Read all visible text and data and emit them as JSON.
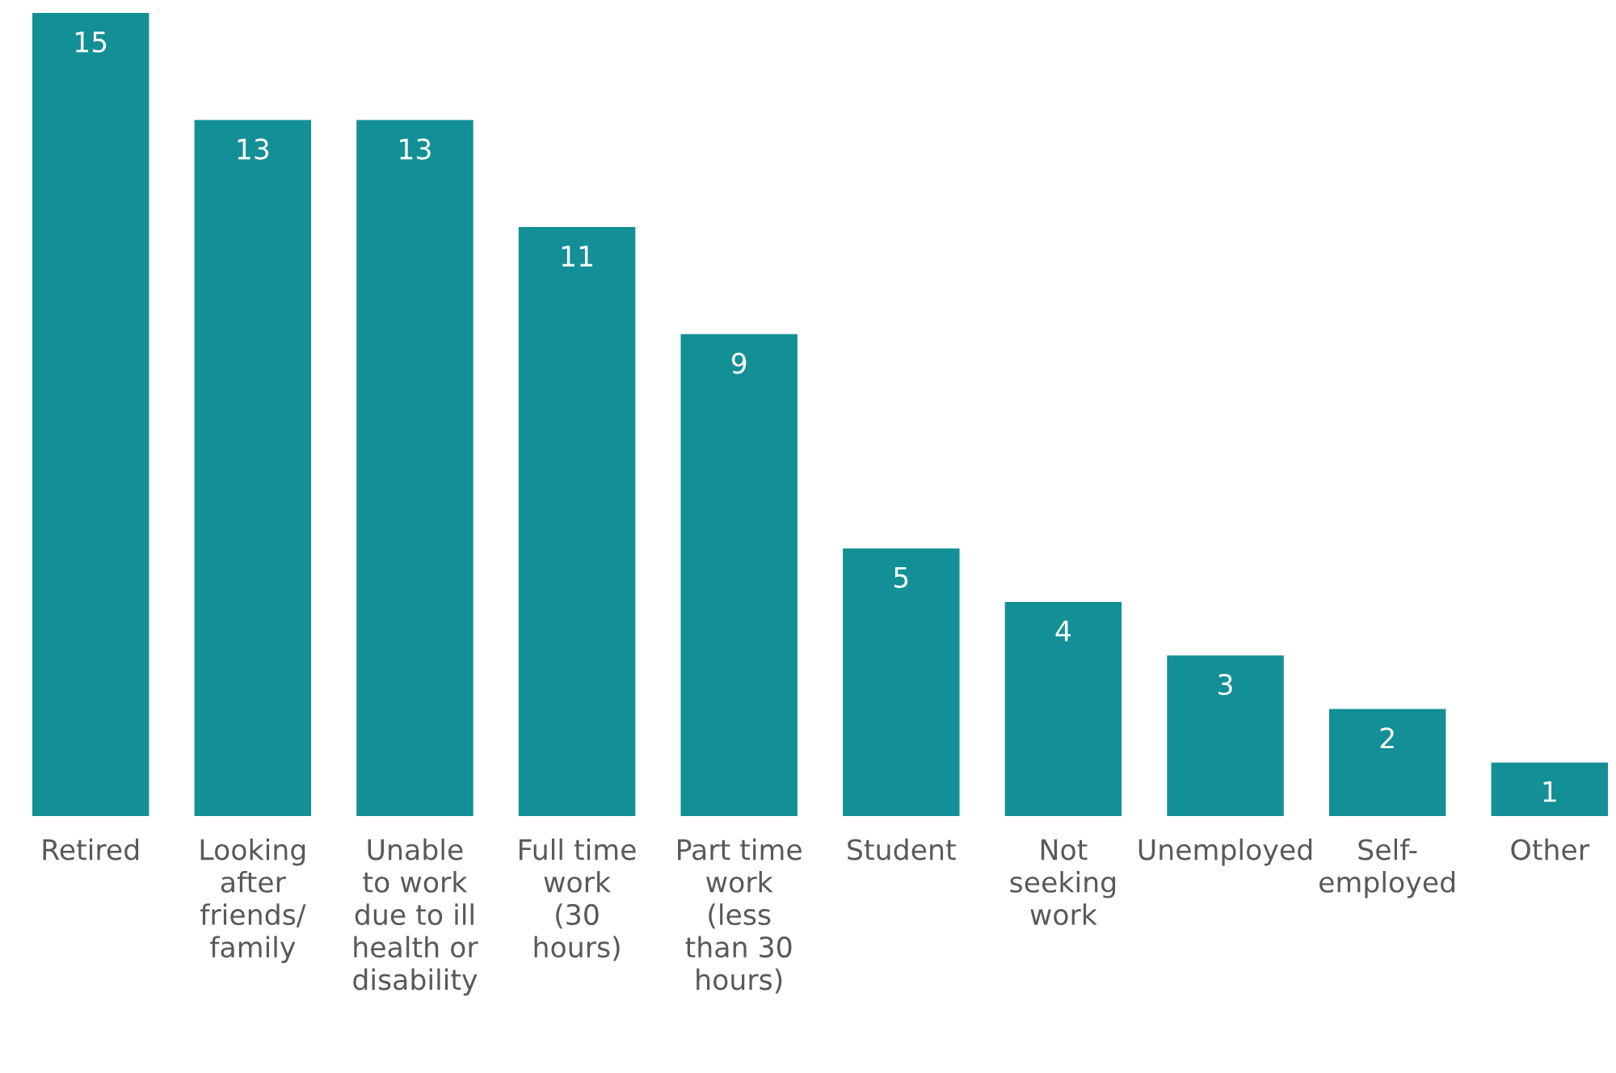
{
  "chart_data": {
    "type": "bar",
    "categories": [
      "Retired",
      "Looking\nafter\nfriends/\nfamily",
      "Unable\nto work\ndue to ill\nhealth or\ndisability",
      "Full time\nwork\n(30\nhours)",
      "Part time\nwork\n(less\nthan 30\nhours)",
      "Student",
      "Not\nseeking\nwork",
      "Unemployed",
      "Self-\nemployed",
      "Other"
    ],
    "values": [
      15,
      13,
      13,
      11,
      9,
      5,
      4,
      3,
      2,
      1
    ],
    "color": "#138f96",
    "data_labels": true,
    "ylim": [
      0,
      15
    ],
    "tick_labels": "x"
  }
}
